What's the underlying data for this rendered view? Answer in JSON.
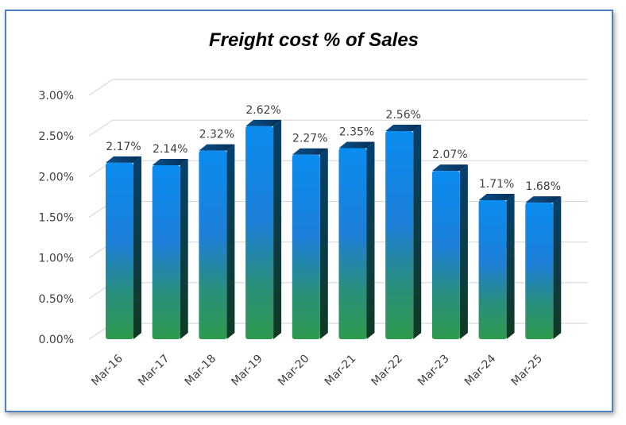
{
  "chart_data": {
    "type": "bar",
    "title": "Freight cost % of Sales",
    "categories": [
      "Mar-16",
      "Mar-17",
      "Mar-18",
      "Mar-19",
      "Mar-20",
      "Mar-21",
      "Mar-22",
      "Mar-23",
      "Mar-24",
      "Mar-25"
    ],
    "values": [
      2.17,
      2.14,
      2.32,
      2.62,
      2.27,
      2.35,
      2.56,
      2.07,
      1.71,
      1.68
    ],
    "data_labels": [
      "2.17%",
      "2.14%",
      "2.32%",
      "2.62%",
      "2.27%",
      "2.35%",
      "2.56%",
      "2.07%",
      "1.71%",
      "1.68%"
    ],
    "y_ticks": [
      0,
      0.5,
      1.0,
      1.5,
      2.0,
      2.5,
      3.0
    ],
    "y_tick_labels": [
      "0.00%",
      "0.50%",
      "1.00%",
      "1.50%",
      "2.00%",
      "2.50%",
      "3.00%"
    ],
    "ylim": [
      0,
      3.0
    ],
    "grid": true,
    "legend": "none",
    "style": "3d-column",
    "colors": {
      "bar_top": "#0a8cf0",
      "bar_mid": "#1e78d2",
      "bar_bottom": "#2e9a55",
      "border": "#4f81bd",
      "gridline": "#d9d9d9"
    }
  }
}
